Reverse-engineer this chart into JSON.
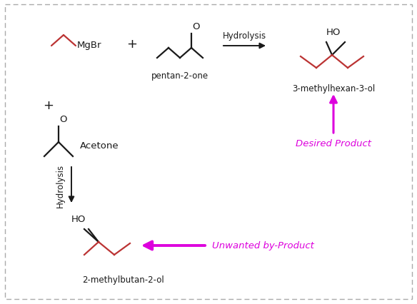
{
  "bg_color": "#ffffff",
  "border_color": "#aaaaaa",
  "bond_color": "#1a1a1a",
  "grignard_color": "#bb3333",
  "product_color": "#bb3333",
  "magenta": "#dd00dd",
  "mgbr_label": "MgBr",
  "hydrolysis_top": "Hydrolysis",
  "hydrolysis_side": "Hydrolysis",
  "pentan2one_label": "pentan-2-one",
  "acetone_label": "Acetone",
  "product1_label": "3-methylhexan-3-ol",
  "product2_label": "2-methylbutan-2-ol",
  "desired_label": "Desired Product",
  "unwanted_label": "Unwanted by-Product"
}
